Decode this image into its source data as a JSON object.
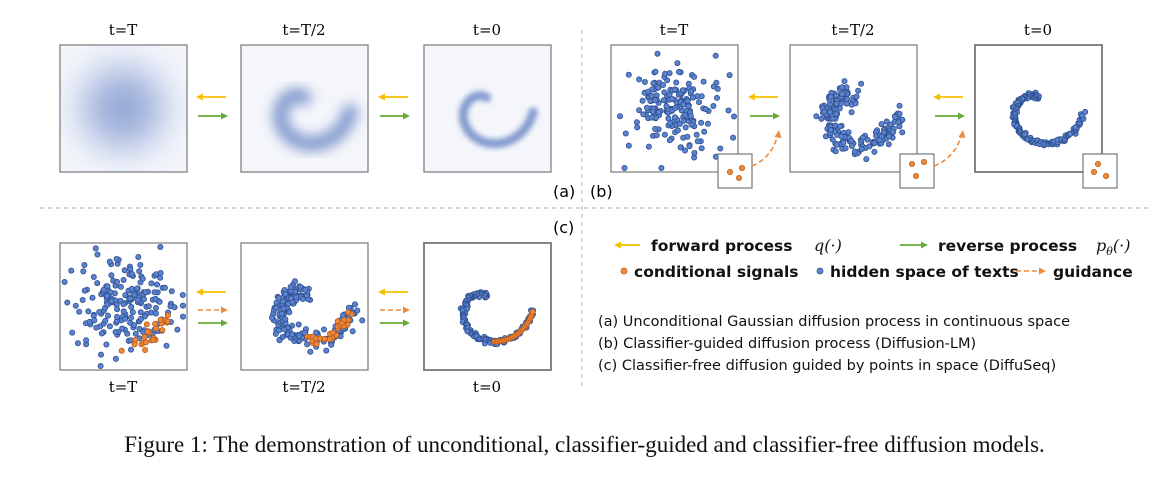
{
  "panels": {
    "a": {
      "label": "(a)",
      "time_labels": [
        "t=T",
        "t=T/2",
        "t=0"
      ]
    },
    "b": {
      "label": "(b)",
      "time_labels": [
        "t=T",
        "t=T/2",
        "t=0"
      ]
    },
    "c": {
      "label": "(c)",
      "time_labels": [
        "t=T",
        "t=T/2",
        "t=0"
      ]
    }
  },
  "legend": {
    "forward_label": "forward process",
    "forward_math": "q(·)",
    "reverse_label": "reverse process",
    "reverse_math_base": "p",
    "reverse_math_sub": "θ",
    "reverse_math_rest": "(·)",
    "conditional_label": "conditional signals",
    "hidden_label": "hidden space of texts",
    "guidance_label": "guidance"
  },
  "descriptions": [
    "(a) Unconditional Gaussian diffusion process in continuous space",
    "(b) Classifier-guided diffusion process (Diffusion-LM)",
    "(c) Classifier-free diffusion guided by points in space (DiffuSeq)"
  ],
  "caption": "Figure 1: The demonstration of unconditional, classifier-guided and classifier-free diffusion models.",
  "colors": {
    "forward": "#f5c000",
    "reverse": "#6aaa3a",
    "guidance": "#ee8a3a",
    "point_fill": "#5b83cf",
    "point_stroke": "#2f4f8f",
    "cond_fill": "#f0883a",
    "cond_stroke": "#b85a18",
    "frame": "#777777",
    "blur_base": "#f4f6fb",
    "blur_ink": "#7d95cc"
  }
}
